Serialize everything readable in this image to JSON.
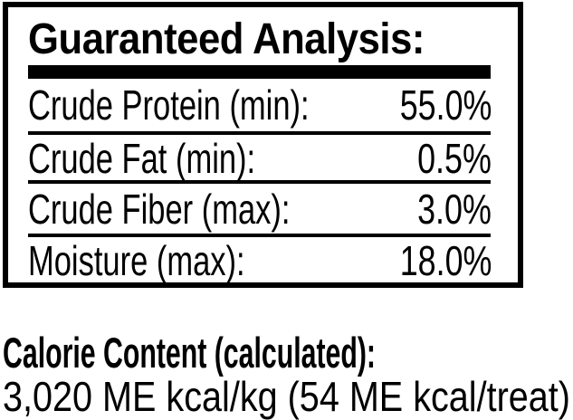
{
  "panel": {
    "title": "Guaranteed Analysis:",
    "rows": [
      {
        "label": "Crude Protein (min):",
        "value": "55.0%"
      },
      {
        "label": "Crude Fat (min):",
        "value": "0.5%"
      },
      {
        "label": "Crude Fiber (max):",
        "value": "3.0%"
      },
      {
        "label": "Moisture (max):",
        "value": "18.0%"
      }
    ]
  },
  "calorie": {
    "heading": "Calorie Content (calculated):",
    "value": "3,020 ME kcal/kg (54 ME kcal/treat)"
  },
  "colors": {
    "text": "#000000",
    "border": "#000000",
    "background": "#ffffff"
  }
}
